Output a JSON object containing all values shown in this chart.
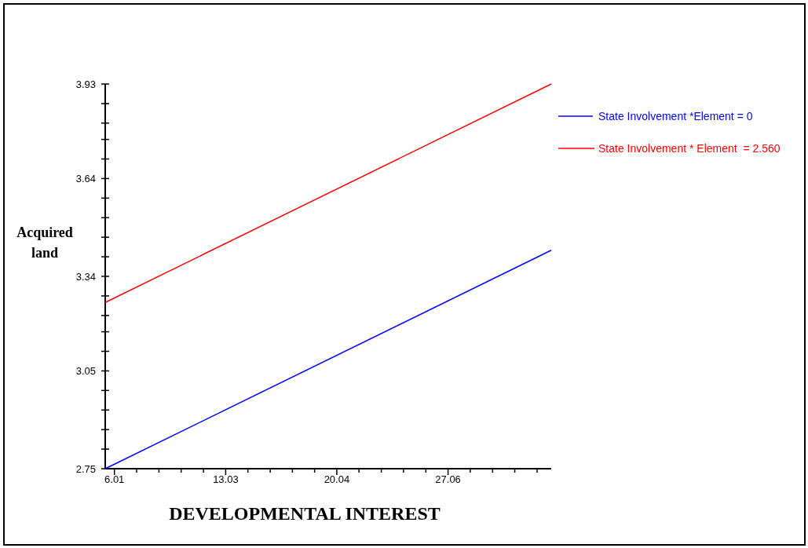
{
  "chart_data": {
    "type": "line",
    "xlabel": "DEVELOPMENTAL INTEREST",
    "ylabel": "Acquired land",
    "x": [
      5.43,
      33.57
    ],
    "series": [
      {
        "name": "State Involvement *Element = 0",
        "color": "#0000ff",
        "values": [
          2.75,
          3.42
        ]
      },
      {
        "name": "State Involvement * Element  = 2.560",
        "color": "#ff0000",
        "values": [
          3.26,
          3.93
        ]
      }
    ],
    "xlim": [
      5.43,
      33.57
    ],
    "ylim": [
      2.75,
      3.93
    ],
    "xticks": [
      6.01,
      {
        "value": 7.41,
        "label": null
      },
      {
        "value": 8.82,
        "label": null
      },
      {
        "value": 10.22,
        "label": null
      },
      {
        "value": 11.63,
        "label": null
      },
      13.03,
      {
        "value": 14.43,
        "label": null
      },
      {
        "value": 15.84,
        "label": null
      },
      {
        "value": 17.24,
        "label": null
      },
      {
        "value": 18.64,
        "label": null
      },
      20.04,
      {
        "value": 21.44,
        "label": null
      },
      {
        "value": 22.85,
        "label": null
      },
      {
        "value": 24.25,
        "label": null
      },
      {
        "value": 25.66,
        "label": null
      },
      27.06,
      {
        "value": 28.46,
        "label": null
      },
      {
        "value": 29.87,
        "label": null
      },
      {
        "value": 31.27,
        "label": null
      },
      {
        "value": 32.68,
        "label": null
      }
    ],
    "yticks": [
      2.75,
      {
        "value": 2.81,
        "label": null
      },
      {
        "value": 2.87,
        "label": null
      },
      {
        "value": 2.93,
        "label": null
      },
      {
        "value": 2.99,
        "label": null
      },
      3.05,
      {
        "value": 3.11,
        "label": null
      },
      {
        "value": 3.17,
        "label": null
      },
      {
        "value": 3.22,
        "label": null
      },
      {
        "value": 3.28,
        "label": null
      },
      3.34,
      {
        "value": 3.4,
        "label": null
      },
      {
        "value": 3.46,
        "label": null
      },
      {
        "value": 3.52,
        "label": null
      },
      {
        "value": 3.58,
        "label": null
      },
      3.64,
      {
        "value": 3.7,
        "label": null
      },
      {
        "value": 3.76,
        "label": null
      },
      {
        "value": 3.81,
        "label": null
      },
      {
        "value": 3.87,
        "label": null
      },
      3.93
    ],
    "legend": "right",
    "grid": false,
    "marker": "none",
    "line_style": "solid"
  }
}
